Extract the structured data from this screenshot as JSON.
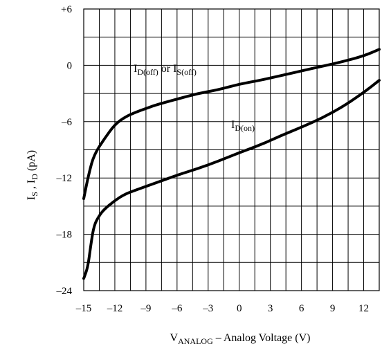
{
  "chart_data": {
    "type": "line",
    "xlim": [
      -15,
      13.5
    ],
    "ylim": [
      -24,
      6
    ],
    "xticks": [
      "–15",
      "–12",
      "–9",
      "–6",
      "–3",
      "0",
      "3",
      "6",
      "9",
      "12"
    ],
    "yticks": [
      "+6",
      "0",
      "–6",
      "–12",
      "–18",
      "–24"
    ],
    "grid": true,
    "xlabel": {
      "main": "V",
      "sub": "ANALOG",
      "rest": " – Analog Voltage (V)"
    },
    "ylabel": {
      "p1": "I",
      "s1": "S",
      "p2": " , I",
      "s2": "D",
      "p3": " (pA)"
    },
    "series": [
      {
        "name": "I_D(off) or I_S(off)",
        "label": {
          "p1": "I",
          "s1": "D(off)",
          "p2": " or I",
          "s2": "S(off)"
        },
        "x": [
          -15.0,
          -14.5,
          -14.0,
          -13.0,
          -12.0,
          -11.0,
          -10.0,
          -9.0,
          -8.0,
          -6.0,
          -4.0,
          -2.0,
          0.0,
          2.0,
          4.0,
          6.0,
          8.0,
          10.0,
          12.0,
          13.5
        ],
        "y": [
          -14.2,
          -11.5,
          -9.5,
          -7.8,
          -6.3,
          -5.5,
          -5.0,
          -4.6,
          -4.2,
          -3.6,
          -3.0,
          -2.6,
          -2.0,
          -1.6,
          -1.1,
          -0.6,
          -0.1,
          0.4,
          1.0,
          1.7
        ]
      },
      {
        "name": "I_D(on)",
        "label": {
          "p1": "I",
          "s1": "D(on)",
          "p2": "",
          "s2": ""
        },
        "x": [
          -15.0,
          -14.6,
          -14.3,
          -14.0,
          -13.5,
          -13.0,
          -12.0,
          -11.0,
          -10.0,
          -8.0,
          -6.0,
          -4.0,
          -2.0,
          0.0,
          2.0,
          4.0,
          6.0,
          8.0,
          10.0,
          12.0,
          13.5
        ],
        "y": [
          -22.7,
          -21.5,
          -19.0,
          -17.0,
          -16.0,
          -15.3,
          -14.4,
          -13.7,
          -13.3,
          -12.5,
          -11.7,
          -11.0,
          -10.2,
          -9.3,
          -8.5,
          -7.5,
          -6.6,
          -5.6,
          -4.4,
          -2.9,
          -1.6
        ]
      }
    ],
    "colors": {
      "line": "#000000",
      "grid": "#000000",
      "background": "#ffffff"
    }
  }
}
